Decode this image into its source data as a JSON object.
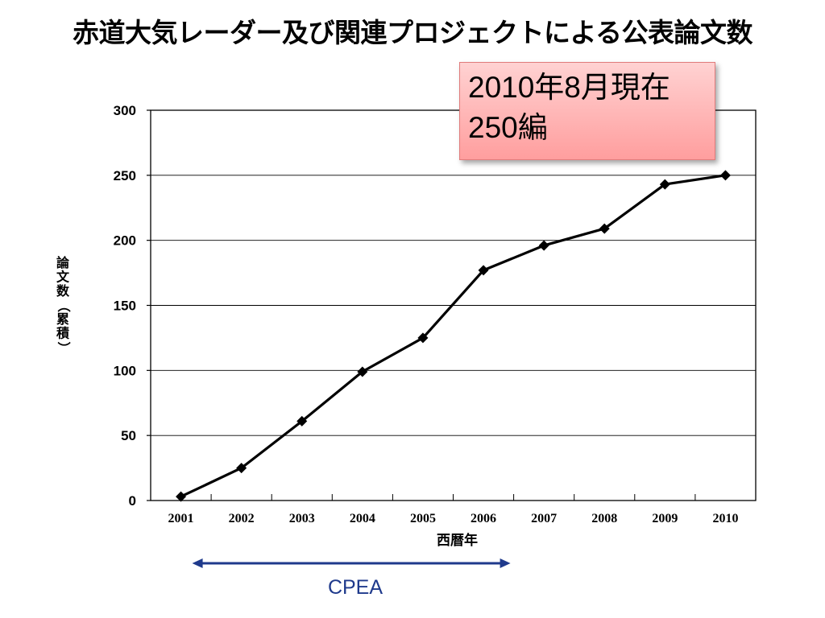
{
  "slide": {
    "title": "赤道大気レーダー及び関連プロジェクトによる公表論文数"
  },
  "annotation": {
    "line1": "2010年8月現在",
    "line2": "250編"
  },
  "period": {
    "label": "CPEA",
    "start": 2001,
    "end": 2006.5,
    "color": "#1f3a8c"
  },
  "chart_data": {
    "type": "line",
    "x": [
      2001,
      2002,
      2003,
      2004,
      2005,
      2006,
      2007,
      2008,
      2009,
      2010
    ],
    "categories": [
      "2001",
      "2002",
      "2003",
      "2004",
      "2005",
      "2006",
      "2007",
      "2008",
      "2009",
      "2010"
    ],
    "series": [
      {
        "values": [
          3,
          25,
          61,
          99,
          125,
          177,
          196,
          209,
          243,
          250
        ]
      }
    ],
    "xlabel": "西暦年",
    "ylabel": "論文数（累積）",
    "ylim": [
      0,
      300
    ],
    "yticks": [
      "0",
      "50",
      "100",
      "150",
      "200",
      "250",
      "300"
    ],
    "grid": true,
    "marker": "diamond",
    "line_color": "#000000"
  }
}
